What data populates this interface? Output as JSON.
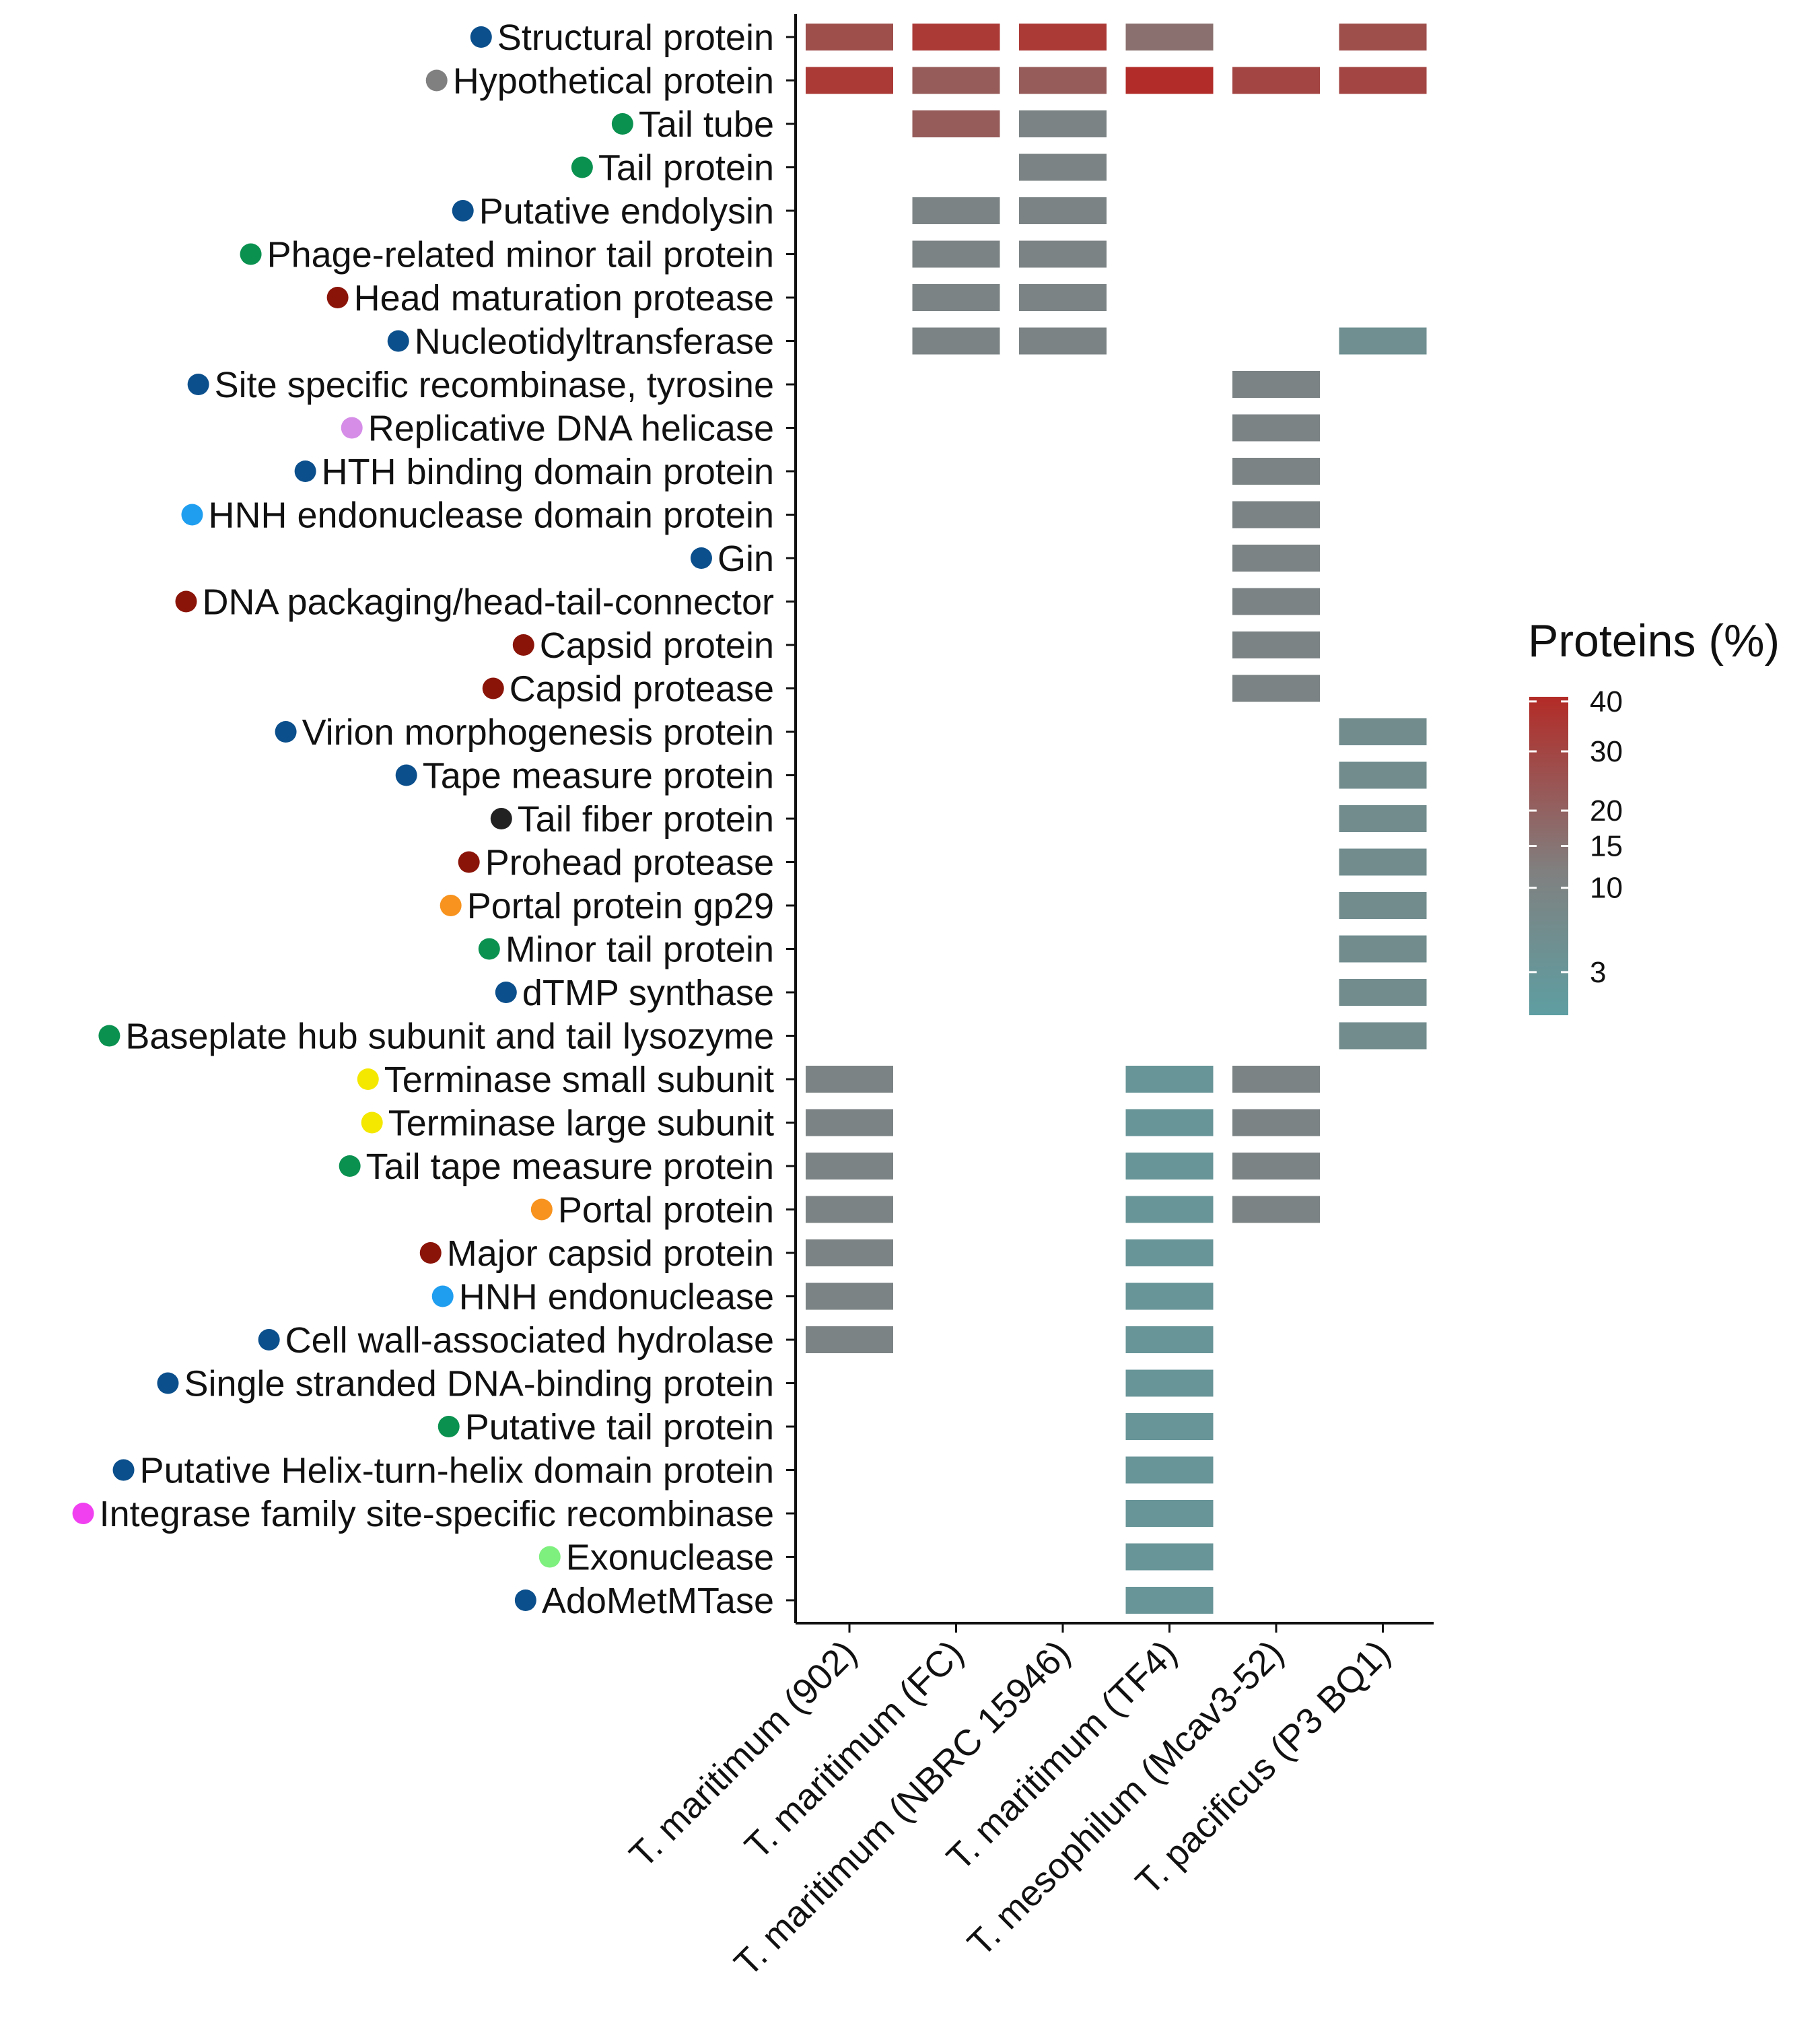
{
  "chart_data": {
    "type": "heatmap",
    "columns": [
      "T. maritimum (902)",
      "T. maritimum (FC)",
      "T. maritimum (NBRC 15946)",
      "T. maritimum (TF4)",
      "T. mesophilum (Mcav3-52)",
      "T. pacificus (P3 BQ1)"
    ],
    "rows": [
      {
        "label": "Structural protein",
        "color": "#0b4f8c",
        "values": [
          27,
          35,
          35,
          16,
          null,
          27
        ]
      },
      {
        "label": "Hypothetical protein",
        "color": "#808080",
        "values": [
          35,
          22,
          22,
          40,
          30,
          30
        ]
      },
      {
        "label": "Tail tube",
        "color": "#0a9150",
        "values": [
          null,
          22,
          10,
          null,
          null,
          null
        ]
      },
      {
        "label": "Tail protein",
        "color": "#0a9150",
        "values": [
          null,
          null,
          10,
          null,
          null,
          null
        ]
      },
      {
        "label": "Putative endolysin",
        "color": "#0b4f8c",
        "values": [
          null,
          10,
          10,
          null,
          null,
          null
        ]
      },
      {
        "label": "Phage-related minor tail protein",
        "color": "#0a9150",
        "values": [
          null,
          10,
          10,
          null,
          null,
          null
        ]
      },
      {
        "label": "Head maturation protease",
        "color": "#8b1409",
        "values": [
          null,
          10,
          10,
          null,
          null,
          null
        ]
      },
      {
        "label": "Nucleotidyltransferase",
        "color": "#0b4f8c",
        "values": [
          null,
          10,
          10,
          null,
          null,
          5
        ]
      },
      {
        "label": "Site specific recombinase, tyrosine",
        "color": "#0b4f8c",
        "values": [
          null,
          null,
          null,
          null,
          10,
          null
        ]
      },
      {
        "label": "Replicative DNA helicase",
        "color": "#d58de8",
        "values": [
          null,
          null,
          null,
          null,
          10,
          null
        ]
      },
      {
        "label": "HTH binding domain protein",
        "color": "#0b4f8c",
        "values": [
          null,
          null,
          null,
          null,
          10,
          null
        ]
      },
      {
        "label": "HNH endonuclease domain protein",
        "color": "#1f9ef0",
        "values": [
          null,
          null,
          null,
          null,
          10,
          null
        ]
      },
      {
        "label": "Gin",
        "color": "#0b4f8c",
        "values": [
          null,
          null,
          null,
          null,
          10,
          null
        ]
      },
      {
        "label": "DNA packaging/head-tail-connector",
        "color": "#8b1409",
        "values": [
          null,
          null,
          null,
          null,
          10,
          null
        ]
      },
      {
        "label": "Capsid protein",
        "color": "#8b1409",
        "values": [
          null,
          null,
          null,
          null,
          10,
          null
        ]
      },
      {
        "label": "Capsid protease",
        "color": "#8b1409",
        "values": [
          null,
          null,
          null,
          null,
          10,
          null
        ]
      },
      {
        "label": "Virion morphogenesis protein",
        "color": "#0b4f8c",
        "values": [
          null,
          null,
          null,
          null,
          null,
          6
        ]
      },
      {
        "label": "Tape measure protein",
        "color": "#0b4f8c",
        "values": [
          null,
          null,
          null,
          null,
          null,
          6
        ]
      },
      {
        "label": "Tail fiber protein",
        "color": "#222222",
        "values": [
          null,
          null,
          null,
          null,
          null,
          6
        ]
      },
      {
        "label": "Prohead protease",
        "color": "#8b1409",
        "values": [
          null,
          null,
          null,
          null,
          null,
          6
        ]
      },
      {
        "label": "Portal protein gp29",
        "color": "#f7931e",
        "values": [
          null,
          null,
          null,
          null,
          null,
          6
        ]
      },
      {
        "label": "Minor tail protein",
        "color": "#0a9150",
        "values": [
          null,
          null,
          null,
          null,
          null,
          6
        ]
      },
      {
        "label": "dTMP synthase",
        "color": "#0b4f8c",
        "values": [
          null,
          null,
          null,
          null,
          null,
          6
        ]
      },
      {
        "label": "Baseplate hub subunit and tail lysozyme",
        "color": "#0a9150",
        "values": [
          null,
          null,
          null,
          null,
          null,
          6
        ]
      },
      {
        "label": "Terminase small subunit",
        "color": "#f4e800",
        "values": [
          10,
          null,
          null,
          3,
          10,
          null
        ]
      },
      {
        "label": "Terminase large subunit",
        "color": "#f4e800",
        "values": [
          10,
          null,
          null,
          3,
          10,
          null
        ]
      },
      {
        "label": "Tail tape measure protein",
        "color": "#0a9150",
        "values": [
          10,
          null,
          null,
          3,
          10,
          null
        ]
      },
      {
        "label": "Portal protein",
        "color": "#f7931e",
        "values": [
          10,
          null,
          null,
          3,
          10,
          null
        ]
      },
      {
        "label": "Major capsid protein",
        "color": "#8b1409",
        "values": [
          10,
          null,
          null,
          3,
          null,
          null
        ]
      },
      {
        "label": "HNH endonuclease",
        "color": "#1f9ef0",
        "values": [
          10,
          null,
          null,
          3,
          null,
          null
        ]
      },
      {
        "label": "Cell wall-associated hydrolase",
        "color": "#0b4f8c",
        "values": [
          10,
          null,
          null,
          3,
          null,
          null
        ]
      },
      {
        "label": "Single stranded DNA-binding protein",
        "color": "#0b4f8c",
        "values": [
          null,
          null,
          null,
          3,
          null,
          null
        ]
      },
      {
        "label": "Putative tail protein",
        "color": "#0a9150",
        "values": [
          null,
          null,
          null,
          3,
          null,
          null
        ]
      },
      {
        "label": "Putative Helix-turn-helix domain protein",
        "color": "#0b4f8c",
        "values": [
          null,
          null,
          null,
          3,
          null,
          null
        ]
      },
      {
        "label": "Integrase family site-specific recombinase",
        "color": "#f040f0",
        "values": [
          null,
          null,
          null,
          3,
          null,
          null
        ]
      },
      {
        "label": "Exonuclease",
        "color": "#7ef07e",
        "values": [
          null,
          null,
          null,
          3,
          null,
          null
        ]
      },
      {
        "label": "AdoMetMTase",
        "color": "#0b4f8c",
        "values": [
          null,
          null,
          null,
          3,
          null,
          null
        ]
      }
    ],
    "legend": {
      "title": "Proteins (%)",
      "ticks": [
        40,
        30,
        20,
        15,
        10,
        3
      ],
      "range": [
        1,
        41
      ],
      "placement": "right",
      "low_color": "#5e9ea2",
      "mid_color": "#808080",
      "high_color": "#b32b27"
    }
  }
}
